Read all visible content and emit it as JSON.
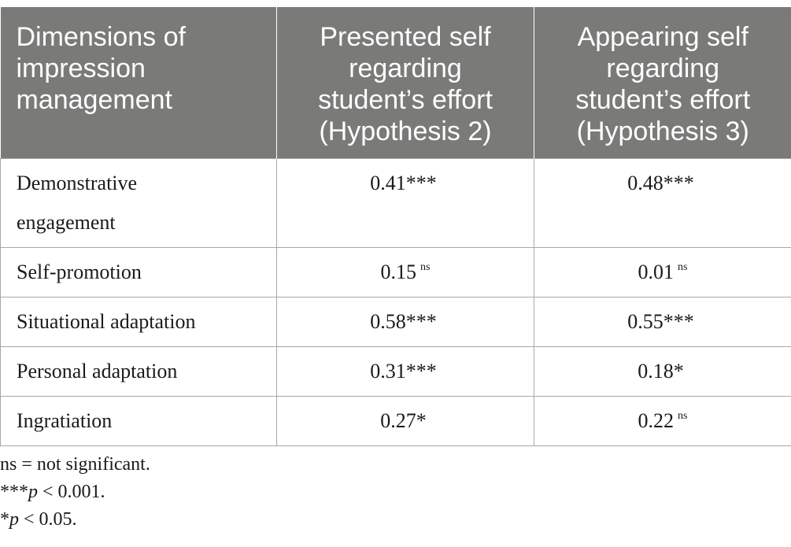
{
  "table": {
    "headers": [
      "Dimensions of impression management",
      "Presented self regarding student’s effort (Hypothesis 2)",
      "Appearing self regarding student’s effort (Hypothesis 3)"
    ],
    "header_lines": [
      [
        "Dimensions of",
        "impression",
        "management"
      ],
      [
        "Presented self",
        "regarding",
        "student’s effort",
        "(Hypothesis 2)"
      ],
      [
        "Appearing self",
        "regarding",
        "student’s effort",
        "(Hypothesis 3)"
      ]
    ],
    "rows": [
      {
        "dimension_lines": [
          "Demonstrative",
          "engagement"
        ],
        "presented": {
          "value": "0.41",
          "sig": "***",
          "sup": ""
        },
        "appearing": {
          "value": "0.48",
          "sig": "***",
          "sup": ""
        }
      },
      {
        "dimension_lines": [
          "Self-promotion"
        ],
        "presented": {
          "value": "0.15",
          "sig": "",
          "sup": "ns"
        },
        "appearing": {
          "value": "0.01",
          "sig": "",
          "sup": "ns"
        }
      },
      {
        "dimension_lines": [
          "Situational adaptation"
        ],
        "presented": {
          "value": "0.58",
          "sig": "***",
          "sup": ""
        },
        "appearing": {
          "value": "0.55",
          "sig": "***",
          "sup": ""
        }
      },
      {
        "dimension_lines": [
          "Personal adaptation"
        ],
        "presented": {
          "value": "0.31",
          "sig": "***",
          "sup": ""
        },
        "appearing": {
          "value": "0.18",
          "sig": "*",
          "sup": ""
        }
      },
      {
        "dimension_lines": [
          "Ingratiation"
        ],
        "presented": {
          "value": "0.27",
          "sig": "*",
          "sup": ""
        },
        "appearing": {
          "value": "0.22",
          "sig": "",
          "sup": "ns"
        }
      }
    ]
  },
  "footnotes": {
    "ns": {
      "text": "ns = not significant."
    },
    "p001": {
      "stars": "***",
      "var": "p",
      "rest": " < 0.001."
    },
    "p05": {
      "stars": "*",
      "var": "p",
      "rest": " < 0.05."
    }
  },
  "colors": {
    "header_bg": "#7a7a78",
    "header_text": "#ffffff",
    "border": "#a8a8a8",
    "text": "#1a1a1a"
  }
}
